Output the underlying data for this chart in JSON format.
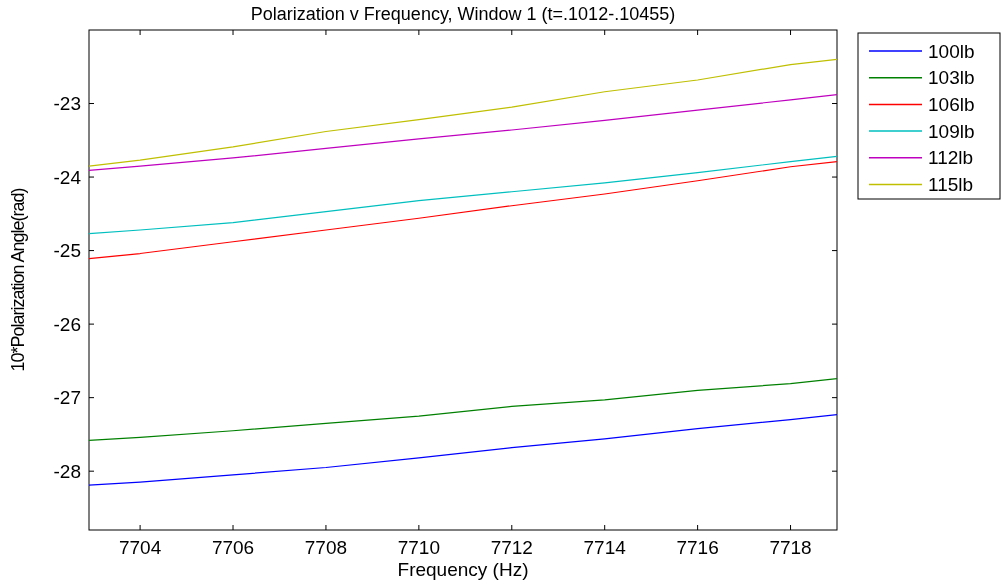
{
  "chart_data": {
    "type": "line",
    "title": "Polarization v Frequency, Window 1 (t=.1012-.10455)",
    "xlabel": "Frequency (Hz)",
    "ylabel": "10*Polarization Angle(rad)",
    "x": [
      7702.9,
      7704,
      7706,
      7708,
      7710,
      7712,
      7714,
      7716,
      7718,
      7719
    ],
    "series": [
      {
        "name": "100lb",
        "color": "#0000ff",
        "values": [
          -28.19,
          -28.15,
          -28.05,
          -27.95,
          -27.82,
          -27.68,
          -27.56,
          -27.42,
          -27.3,
          -27.23
        ]
      },
      {
        "name": "103lb",
        "color": "#008000",
        "values": [
          -27.58,
          -27.54,
          -27.45,
          -27.35,
          -27.25,
          -27.12,
          -27.03,
          -26.9,
          -26.81,
          -26.74
        ]
      },
      {
        "name": "106lb",
        "color": "#ff0000",
        "values": [
          -25.11,
          -25.04,
          -24.88,
          -24.72,
          -24.56,
          -24.39,
          -24.23,
          -24.05,
          -23.86,
          -23.79
        ]
      },
      {
        "name": "109lb",
        "color": "#00bfbf",
        "values": [
          -24.77,
          -24.72,
          -24.62,
          -24.47,
          -24.32,
          -24.2,
          -24.08,
          -23.94,
          -23.79,
          -23.72
        ]
      },
      {
        "name": "112lb",
        "color": "#bf00bf",
        "values": [
          -23.91,
          -23.85,
          -23.74,
          -23.61,
          -23.48,
          -23.36,
          -23.23,
          -23.09,
          -22.95,
          -22.88
        ]
      },
      {
        "name": "115lb",
        "color": "#bfbf00",
        "values": [
          -23.85,
          -23.77,
          -23.59,
          -23.38,
          -23.22,
          -23.05,
          -22.84,
          -22.68,
          -22.47,
          -22.4
        ]
      }
    ],
    "xlim": [
      7702.9,
      7719
    ],
    "ylim": [
      -28.8,
      -22
    ],
    "xticks": [
      7704,
      7706,
      7708,
      7710,
      7712,
      7714,
      7716,
      7718
    ],
    "yticks": [
      -28,
      -27,
      -26,
      -25,
      -24,
      -23
    ],
    "grid": false,
    "legend": "right",
    "line_style": "solid",
    "marker": "none"
  }
}
